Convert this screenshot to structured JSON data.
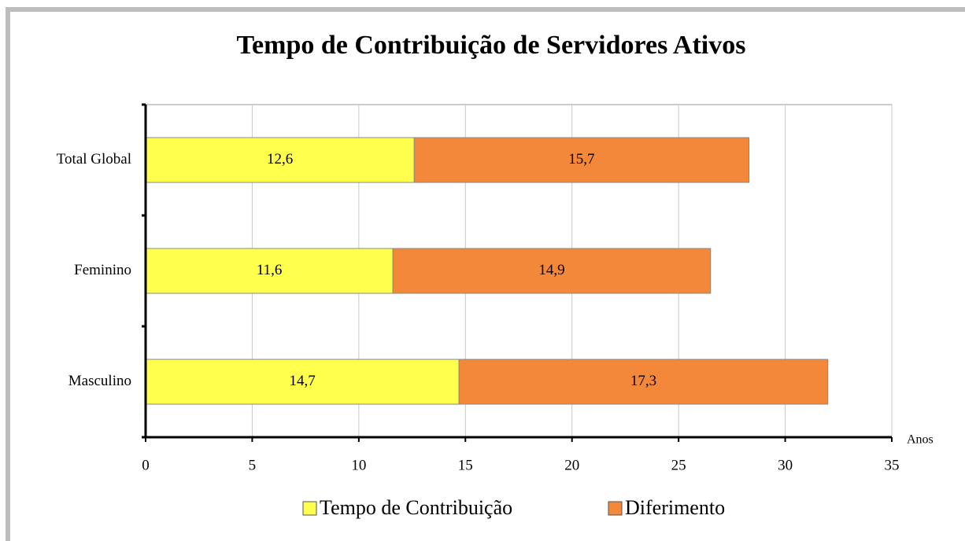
{
  "chart_data": {
    "type": "stacked-barh",
    "title": "Tempo de Contribuição de Servidores Ativos",
    "xlabel": "Anos",
    "categories": [
      "Total Global",
      "Feminino",
      "Masculino"
    ],
    "series": [
      {
        "name": "Tempo de Contribuição",
        "color": "#ffff4d",
        "values": [
          12.6,
          11.6,
          14.7
        ],
        "value_labels": [
          "12,6",
          "11,6",
          "14,7"
        ]
      },
      {
        "name": "Diferimento",
        "color": "#f4883a",
        "values": [
          15.7,
          14.9,
          17.3
        ],
        "value_labels": [
          "15,7",
          "14,9",
          "17,3"
        ]
      }
    ],
    "xlim": [
      0,
      35
    ],
    "xticks": [
      0,
      5,
      10,
      15,
      20,
      25,
      30,
      35
    ],
    "grid": true
  }
}
